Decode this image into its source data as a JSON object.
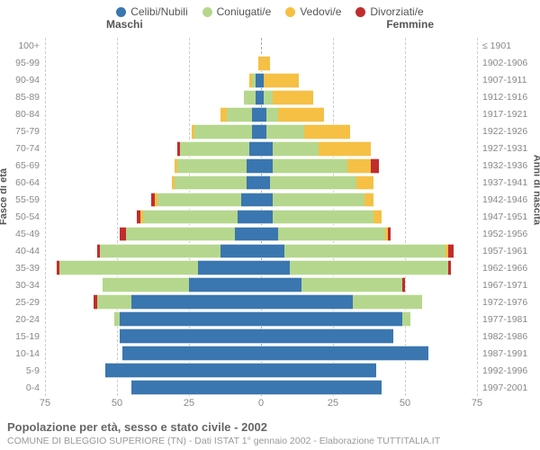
{
  "legend": [
    {
      "label": "Celibi/Nubili",
      "color": "#3a76af"
    },
    {
      "label": "Coniugati/e",
      "color": "#b5d78d"
    },
    {
      "label": "Vedovi/e",
      "color": "#f5c044"
    },
    {
      "label": "Divorziati/e",
      "color": "#c22c2c"
    }
  ],
  "headers": {
    "male": "Maschi",
    "female": "Femmine"
  },
  "axis_titles": {
    "left": "Fasce di età",
    "right": "Anni di nascita"
  },
  "chart": {
    "type": "population-pyramid",
    "xmax": 75,
    "xticks": [
      75,
      50,
      25,
      0,
      25,
      50,
      75
    ],
    "grid_color": "#cccccc",
    "center_color": "#aaaaaa",
    "background": "#ffffff",
    "rows": [
      {
        "age": "100+",
        "birth": "≤ 1901",
        "m": [
          0,
          0,
          0,
          0
        ],
        "f": [
          0,
          0,
          0,
          0
        ]
      },
      {
        "age": "95-99",
        "birth": "1902-1906",
        "m": [
          0,
          0,
          1,
          0
        ],
        "f": [
          0,
          0,
          3,
          0
        ]
      },
      {
        "age": "90-94",
        "birth": "1907-1911",
        "m": [
          2,
          1,
          1,
          0
        ],
        "f": [
          1,
          0,
          12,
          0
        ]
      },
      {
        "age": "85-89",
        "birth": "1912-1916",
        "m": [
          2,
          4,
          0,
          0
        ],
        "f": [
          1,
          3,
          14,
          0
        ]
      },
      {
        "age": "80-84",
        "birth": "1917-1921",
        "m": [
          3,
          9,
          2,
          0
        ],
        "f": [
          2,
          4,
          16,
          0
        ]
      },
      {
        "age": "75-79",
        "birth": "1922-1926",
        "m": [
          3,
          20,
          1,
          0
        ],
        "f": [
          2,
          13,
          16,
          0
        ]
      },
      {
        "age": "70-74",
        "birth": "1927-1931",
        "m": [
          4,
          24,
          0,
          1
        ],
        "f": [
          4,
          16,
          18,
          0
        ]
      },
      {
        "age": "65-69",
        "birth": "1932-1936",
        "m": [
          5,
          24,
          1,
          0
        ],
        "f": [
          4,
          26,
          8,
          3
        ]
      },
      {
        "age": "60-64",
        "birth": "1937-1941",
        "m": [
          5,
          25,
          1,
          0
        ],
        "f": [
          3,
          30,
          6,
          0
        ]
      },
      {
        "age": "55-59",
        "birth": "1942-1946",
        "m": [
          7,
          29,
          1,
          1
        ],
        "f": [
          4,
          32,
          3,
          0
        ]
      },
      {
        "age": "50-54",
        "birth": "1947-1951",
        "m": [
          8,
          33,
          1,
          1
        ],
        "f": [
          4,
          35,
          3,
          0
        ]
      },
      {
        "age": "45-49",
        "birth": "1952-1956",
        "m": [
          9,
          38,
          0,
          2
        ],
        "f": [
          6,
          37,
          1,
          1
        ]
      },
      {
        "age": "40-44",
        "birth": "1957-1961",
        "m": [
          14,
          42,
          0,
          1
        ],
        "f": [
          8,
          56,
          1,
          2
        ]
      },
      {
        "age": "35-39",
        "birth": "1962-1966",
        "m": [
          22,
          48,
          0,
          1
        ],
        "f": [
          10,
          55,
          0,
          1
        ]
      },
      {
        "age": "30-34",
        "birth": "1967-1971",
        "m": [
          25,
          30,
          0,
          0
        ],
        "f": [
          14,
          35,
          0,
          1
        ]
      },
      {
        "age": "25-29",
        "birth": "1972-1976",
        "m": [
          45,
          12,
          0,
          1
        ],
        "f": [
          32,
          24,
          0,
          0
        ]
      },
      {
        "age": "20-24",
        "birth": "1977-1981",
        "m": [
          49,
          2,
          0,
          0
        ],
        "f": [
          49,
          3,
          0,
          0
        ]
      },
      {
        "age": "15-19",
        "birth": "1982-1986",
        "m": [
          49,
          0,
          0,
          0
        ],
        "f": [
          46,
          0,
          0,
          0
        ]
      },
      {
        "age": "10-14",
        "birth": "1987-1991",
        "m": [
          48,
          0,
          0,
          0
        ],
        "f": [
          58,
          0,
          0,
          0
        ]
      },
      {
        "age": "5-9",
        "birth": "1992-1996",
        "m": [
          54,
          0,
          0,
          0
        ],
        "f": [
          40,
          0,
          0,
          0
        ]
      },
      {
        "age": "0-4",
        "birth": "1997-2001",
        "m": [
          45,
          0,
          0,
          0
        ],
        "f": [
          42,
          0,
          0,
          0
        ]
      }
    ]
  },
  "footer": {
    "title": "Popolazione per età, sesso e stato civile - 2002",
    "subtitle": "COMUNE DI BLEGGIO SUPERIORE (TN) - Dati ISTAT 1° gennaio 2002 - Elaborazione TUTTITALIA.IT"
  }
}
